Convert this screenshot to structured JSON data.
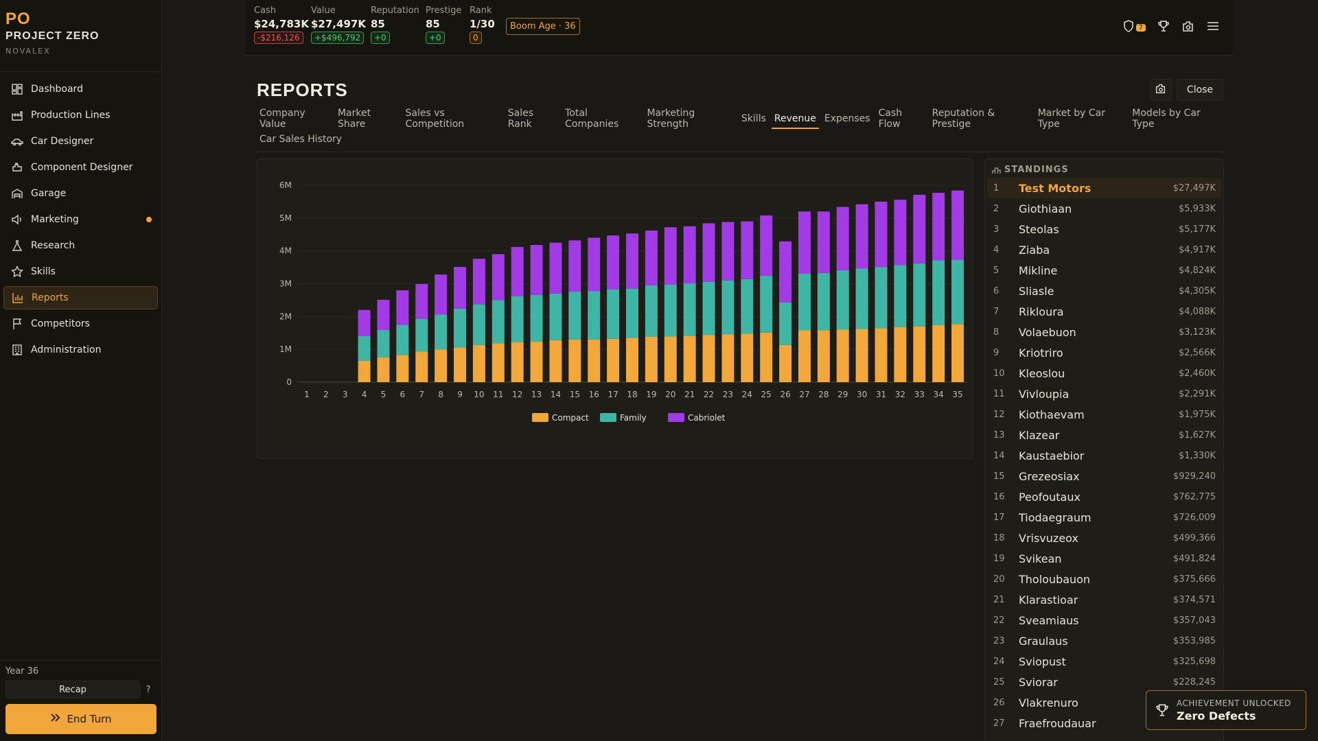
{
  "sidebar": {
    "logo_mark": "PO",
    "logo_title": "PROJECT ZERO",
    "logo_sub": "NOVALEX",
    "items": [
      {
        "label": "Dashboard",
        "icon": "dashboard-icon"
      },
      {
        "label": "Production Lines",
        "icon": "factory-icon"
      },
      {
        "label": "Car Designer",
        "icon": "car-icon"
      },
      {
        "label": "Component Designer",
        "icon": "component-icon"
      },
      {
        "label": "Garage",
        "icon": "garage-icon"
      },
      {
        "label": "Marketing",
        "icon": "megaphone-icon",
        "notification": true
      },
      {
        "label": "Research",
        "icon": "flask-icon"
      },
      {
        "label": "Skills",
        "icon": "star-icon"
      },
      {
        "label": "Reports",
        "icon": "bar-chart-icon",
        "active": true
      },
      {
        "label": "Competitors",
        "icon": "flag-icon"
      },
      {
        "label": "Administration",
        "icon": "building-icon"
      }
    ],
    "year": "Year 36",
    "recap": "Recap",
    "help": "?",
    "end_turn": "End Turn"
  },
  "topbar": {
    "cash": {
      "label": "Cash",
      "value": "$24,783K",
      "delta": "-$216,126"
    },
    "value": {
      "label": "Value",
      "value": "$27,497K",
      "delta": "+$496,792"
    },
    "reputation": {
      "label": "Reputation",
      "value": "85",
      "delta": "+0"
    },
    "prestige": {
      "label": "Prestige",
      "value": "85",
      "delta": "+0"
    },
    "rank": {
      "label": "Rank",
      "value": "1/30",
      "delta": "0"
    },
    "boom": "Boom Age · 36",
    "shield_count": "7"
  },
  "main": {
    "title": "REPORTS",
    "close": "Close",
    "tabs": [
      "Company Value",
      "Market Share",
      "Sales vs Competition",
      "Sales Rank",
      "Total Companies",
      "Marketing Strength",
      "Skills",
      "Revenue",
      "Expenses",
      "Cash Flow",
      "Reputation & Prestige",
      "Market by Car Type",
      "Models by Car Type",
      "Car Sales History"
    ],
    "active_tab": "Revenue"
  },
  "chart_data": {
    "type": "bar",
    "stacked": true,
    "categories": [
      "1",
      "2",
      "3",
      "4",
      "5",
      "6",
      "7",
      "8",
      "9",
      "10",
      "11",
      "12",
      "13",
      "14",
      "15",
      "16",
      "17",
      "18",
      "19",
      "20",
      "21",
      "22",
      "23",
      "24",
      "25",
      "26",
      "27",
      "28",
      "29",
      "30",
      "31",
      "32",
      "33",
      "34",
      "35"
    ],
    "yticks": [
      "0",
      "1M",
      "2M",
      "3M",
      "4M",
      "5M",
      "6M"
    ],
    "ylim": [
      0,
      6000000
    ],
    "grid": true,
    "legend_position": "bottom",
    "colors": {
      "Compact": "#f2a73b",
      "Family": "#3fb5a5",
      "Cabriolet": "#a23be6"
    },
    "series": [
      {
        "name": "Compact",
        "values": [
          0,
          0,
          0,
          650000,
          760000,
          830000,
          930000,
          1000000,
          1060000,
          1130000,
          1180000,
          1220000,
          1240000,
          1280000,
          1300000,
          1300000,
          1320000,
          1350000,
          1380000,
          1390000,
          1410000,
          1440000,
          1460000,
          1480000,
          1510000,
          1130000,
          1580000,
          1580000,
          1600000,
          1620000,
          1640000,
          1680000,
          1700000,
          1740000,
          1770000
        ]
      },
      {
        "name": "Family",
        "values": [
          0,
          0,
          0,
          750000,
          830000,
          920000,
          1000000,
          1060000,
          1180000,
          1240000,
          1320000,
          1400000,
          1420000,
          1420000,
          1460000,
          1470000,
          1510000,
          1500000,
          1570000,
          1580000,
          1600000,
          1620000,
          1640000,
          1660000,
          1730000,
          1300000,
          1730000,
          1750000,
          1810000,
          1840000,
          1870000,
          1890000,
          1920000,
          1970000,
          1960000
        ]
      },
      {
        "name": "Cabriolet",
        "values": [
          0,
          0,
          0,
          800000,
          920000,
          1050000,
          1060000,
          1220000,
          1270000,
          1390000,
          1400000,
          1500000,
          1520000,
          1550000,
          1560000,
          1630000,
          1640000,
          1680000,
          1670000,
          1750000,
          1740000,
          1780000,
          1780000,
          1760000,
          1840000,
          1860000,
          1890000,
          1870000,
          1930000,
          1960000,
          1990000,
          1990000,
          2090000,
          2060000,
          2110000
        ]
      }
    ]
  },
  "standings": {
    "title": "STANDINGS",
    "rows": [
      {
        "rank": "1",
        "name": "Test Motors",
        "value": "$27,497K",
        "me": true
      },
      {
        "rank": "2",
        "name": "Giothiaan",
        "value": "$5,933K"
      },
      {
        "rank": "3",
        "name": "Steolas",
        "value": "$5,177K"
      },
      {
        "rank": "4",
        "name": "Ziaba",
        "value": "$4,917K"
      },
      {
        "rank": "5",
        "name": "Mikline",
        "value": "$4,824K"
      },
      {
        "rank": "6",
        "name": "Sliasle",
        "value": "$4,305K"
      },
      {
        "rank": "7",
        "name": "Rikloura",
        "value": "$4,088K"
      },
      {
        "rank": "8",
        "name": "Volaebuon",
        "value": "$3,123K"
      },
      {
        "rank": "9",
        "name": "Kriotriro",
        "value": "$2,566K"
      },
      {
        "rank": "10",
        "name": "Kleoslou",
        "value": "$2,460K"
      },
      {
        "rank": "11",
        "name": "Vivloupia",
        "value": "$2,291K"
      },
      {
        "rank": "12",
        "name": "Kiothaevam",
        "value": "$1,975K"
      },
      {
        "rank": "13",
        "name": "Klazear",
        "value": "$1,627K"
      },
      {
        "rank": "14",
        "name": "Kaustaebior",
        "value": "$1,330K"
      },
      {
        "rank": "15",
        "name": "Grezeosiax",
        "value": "$929,240"
      },
      {
        "rank": "16",
        "name": "Peofoutaux",
        "value": "$762,775"
      },
      {
        "rank": "17",
        "name": "Tiodaegraum",
        "value": "$726,009"
      },
      {
        "rank": "18",
        "name": "Vrisvuzeox",
        "value": "$499,366"
      },
      {
        "rank": "19",
        "name": "Svikean",
        "value": "$491,824"
      },
      {
        "rank": "20",
        "name": "Tholoubauon",
        "value": "$375,666"
      },
      {
        "rank": "21",
        "name": "Klarastioar",
        "value": "$374,571"
      },
      {
        "rank": "22",
        "name": "Sveamiaus",
        "value": "$357,043"
      },
      {
        "rank": "23",
        "name": "Graulaus",
        "value": "$353,985"
      },
      {
        "rank": "24",
        "name": "Sviopust",
        "value": "$325,698"
      },
      {
        "rank": "25",
        "name": "Sviorar",
        "value": "$228,245"
      },
      {
        "rank": "26",
        "name": "Vlakrenuro",
        "value": ""
      },
      {
        "rank": "27",
        "name": "Fraefroudauar",
        "value": ""
      }
    ]
  },
  "toast": {
    "title": "ACHIEVEMENT UNLOCKED",
    "value": "Zero Defects"
  }
}
